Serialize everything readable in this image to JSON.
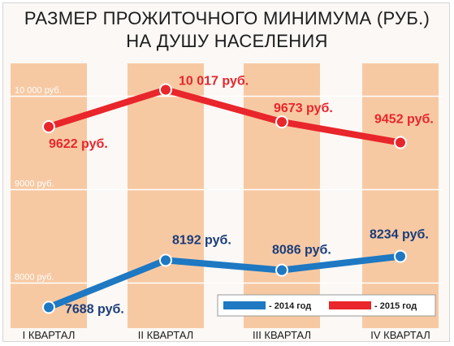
{
  "colors": {
    "stripe": "#f7c9a3",
    "grid": "#ffffff",
    "series_2014": "#1e78c2",
    "series_2015": "#e8262b",
    "label_2014": "#1a3d7a",
    "label_2015": "#e8262b"
  },
  "chart_data": {
    "type": "line",
    "title": "РАЗМЕР ПРОЖИТОЧНОГО МИНИМУМА (РУБ.)",
    "subtitle": "НА ДУШУ НАСЕЛЕНИЯ",
    "categories": [
      "I КВАРТАЛ",
      "II КВАРТАЛ",
      "III КВАРТАЛ",
      "IV КВАРТАЛ"
    ],
    "yticks": [
      {
        "value": 10000,
        "label": "10 000 руб."
      },
      {
        "value": 9000,
        "label": "9000 руб."
      },
      {
        "value": 8000,
        "label": "8000 руб."
      }
    ],
    "ylim": [
      7500,
      10300
    ],
    "grid": true,
    "legend_position": "bottom-right",
    "series": [
      {
        "name": "- 2014 год",
        "values": [
          7688,
          8192,
          8086,
          8234
        ],
        "labels": [
          "7688 руб.",
          "8192 руб.",
          "8086 руб.",
          "8234 руб."
        ]
      },
      {
        "name": "- 2015 год",
        "values": [
          9622,
          10017,
          9673,
          9452
        ],
        "labels": [
          "9622 руб.",
          "10 017 руб.",
          "9673 руб.",
          "9452 руб."
        ]
      }
    ]
  }
}
